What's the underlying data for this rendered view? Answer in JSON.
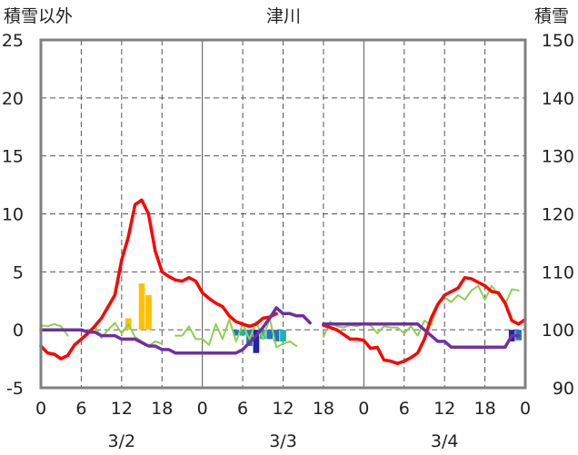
{
  "chart_data": {
    "type": "line",
    "title": "津川",
    "ylabel_left": "積雪以外",
    "ylabel_right": "積雪",
    "ylim_left": [
      -5,
      25
    ],
    "ylim_right": [
      90,
      150
    ],
    "yticks_left": [
      "25",
      "20",
      "15",
      "10",
      "5",
      "0",
      "-5"
    ],
    "yticks_right": [
      "150",
      "140",
      "130",
      "120",
      "110",
      "100",
      "90"
    ],
    "xlim": [
      0,
      72
    ],
    "xticks": [
      "0",
      "6",
      "12",
      "18",
      "0",
      "6",
      "12",
      "18",
      "0",
      "6",
      "12",
      "18",
      "0"
    ],
    "day_labels": [
      "3/2",
      "3/3",
      "3/4"
    ],
    "grid": true,
    "series": [
      {
        "color": "#ff0000",
        "axis": "left",
        "segments": [
          [
            [
              0,
              -1.4
            ],
            [
              1,
              -2.0
            ],
            [
              2,
              -2.1
            ],
            [
              3,
              -2.5
            ],
            [
              4,
              -2.2
            ],
            [
              5,
              -1.3
            ],
            [
              6,
              -0.8
            ],
            [
              7,
              -0.3
            ],
            [
              8,
              0.3
            ],
            [
              9,
              1.0
            ],
            [
              10,
              2.0
            ],
            [
              11,
              3.0
            ],
            [
              12,
              6.0
            ],
            [
              13,
              8.0
            ],
            [
              14,
              10.8
            ],
            [
              15,
              11.2
            ],
            [
              16,
              10.0
            ],
            [
              17,
              6.8
            ],
            [
              18,
              5.0
            ],
            [
              19,
              4.6
            ],
            [
              20,
              4.3
            ],
            [
              21,
              4.2
            ],
            [
              22,
              4.5
            ],
            [
              23,
              4.2
            ],
            [
              24,
              3.2
            ],
            [
              25,
              2.7
            ],
            [
              26,
              2.3
            ],
            [
              27,
              2.0
            ],
            [
              28,
              1.2
            ],
            [
              29,
              0.7
            ],
            [
              30,
              0.5
            ],
            [
              31,
              0.3
            ],
            [
              32,
              0.5
            ],
            [
              33,
              1.0
            ],
            [
              34,
              1.1
            ],
            [
              35,
              1.4
            ]
          ],
          [
            [
              42,
              0.4
            ],
            [
              43,
              0.2
            ],
            [
              44,
              0.0
            ],
            [
              45,
              -0.4
            ],
            [
              46,
              -0.8
            ],
            [
              47,
              -0.8
            ],
            [
              48,
              -0.9
            ],
            [
              49,
              -1.6
            ],
            [
              50,
              -1.5
            ],
            [
              51,
              -2.6
            ],
            [
              52,
              -2.7
            ],
            [
              53,
              -2.9
            ],
            [
              54,
              -2.7
            ],
            [
              55,
              -2.4
            ],
            [
              56,
              -2.0
            ],
            [
              57,
              -0.8
            ],
            [
              58,
              1.0
            ],
            [
              59,
              2.2
            ],
            [
              60,
              3.0
            ],
            [
              61,
              3.3
            ],
            [
              62,
              3.6
            ],
            [
              63,
              4.5
            ],
            [
              64,
              4.4
            ],
            [
              65,
              4.1
            ],
            [
              66,
              3.8
            ],
            [
              67,
              3.3
            ],
            [
              68,
              3.2
            ],
            [
              69,
              2.3
            ],
            [
              70,
              0.8
            ],
            [
              71,
              0.5
            ],
            [
              72,
              0.9
            ]
          ]
        ]
      },
      {
        "color": "#8cd150",
        "axis": "left",
        "segments": [
          [
            [
              0,
              0.4
            ],
            [
              1,
              0.3
            ],
            [
              2,
              0.5
            ],
            [
              3,
              0.3
            ],
            [
              4,
              -0.5
            ]
          ],
          [
            [
              8,
              0.3
            ],
            [
              9,
              -0.7
            ],
            [
              10,
              0.0
            ],
            [
              11,
              0.6
            ],
            [
              12,
              -0.3
            ],
            [
              13,
              0.5
            ],
            [
              14,
              -0.6
            ],
            [
              15,
              -1.0
            ],
            [
              16,
              -1.4
            ],
            [
              17,
              -1.0
            ],
            [
              18,
              -1.2
            ]
          ],
          [
            [
              20,
              -0.5
            ],
            [
              21,
              -0.5
            ],
            [
              22,
              0.3
            ],
            [
              23,
              -0.8
            ],
            [
              24,
              -0.8
            ],
            [
              25,
              -1.3
            ],
            [
              26,
              0.5
            ],
            [
              27,
              -0.8
            ],
            [
              28,
              0.9
            ],
            [
              29,
              -1.0
            ],
            [
              30,
              0.5
            ],
            [
              31,
              -0.8
            ],
            [
              32,
              0.7
            ],
            [
              33,
              -0.8
            ],
            [
              34,
              1.0
            ],
            [
              35,
              -1.5
            ],
            [
              36,
              -1.2
            ],
            [
              37,
              -1.0
            ],
            [
              38,
              -1.4
            ]
          ],
          [
            [
              42,
              -0.6
            ],
            [
              43,
              0.7
            ],
            [
              44,
              0.3
            ],
            [
              45,
              0.2
            ],
            [
              46,
              0.4
            ],
            [
              47,
              0.3
            ],
            [
              48,
              0.5
            ],
            [
              49,
              0.4
            ],
            [
              50,
              -0.3
            ],
            [
              51,
              0.3
            ],
            [
              52,
              0.2
            ],
            [
              53,
              0.2
            ],
            [
              54,
              -0.3
            ],
            [
              55,
              0.3
            ],
            [
              56,
              -0.5
            ],
            [
              57,
              0.8
            ],
            [
              58,
              0.4
            ],
            [
              59,
              2.2
            ],
            [
              60,
              2.8
            ],
            [
              61,
              2.4
            ],
            [
              62,
              3.0
            ],
            [
              63,
              2.6
            ],
            [
              64,
              3.4
            ],
            [
              65,
              3.8
            ],
            [
              66,
              2.6
            ],
            [
              67,
              3.8
            ],
            [
              68,
              3.0
            ],
            [
              69,
              2.2
            ],
            [
              70,
              3.5
            ],
            [
              71,
              3.4
            ]
          ]
        ]
      },
      {
        "color": "#7030a0",
        "axis": "right",
        "segments": [
          [
            [
              0,
              100
            ],
            [
              1,
              100
            ],
            [
              2,
              100
            ],
            [
              3,
              100
            ],
            [
              4,
              100
            ],
            [
              5,
              100
            ],
            [
              6,
              100
            ],
            [
              7,
              99.6
            ],
            [
              8,
              99.6
            ],
            [
              9,
              99.0
            ],
            [
              10,
              99.0
            ],
            [
              11,
              99.0
            ],
            [
              12,
              98.4
            ],
            [
              13,
              98.4
            ],
            [
              14,
              98.4
            ],
            [
              15,
              97.8
            ],
            [
              16,
              97.2
            ],
            [
              17,
              97.2
            ],
            [
              18,
              96.6
            ],
            [
              19,
              96.6
            ],
            [
              20,
              96.0
            ],
            [
              21,
              96.0
            ],
            [
              22,
              96.0
            ],
            [
              23,
              96.0
            ],
            [
              24,
              96.0
            ],
            [
              25,
              96.0
            ],
            [
              26,
              96.0
            ],
            [
              27,
              96.0
            ],
            [
              28,
              96.0
            ],
            [
              29,
              96.0
            ],
            [
              30,
              96.6
            ],
            [
              31,
              97.8
            ],
            [
              32,
              99.0
            ],
            [
              33,
              100.4
            ],
            [
              34,
              102.0
            ],
            [
              35,
              103.8
            ],
            [
              36,
              102.8
            ],
            [
              37,
              102.8
            ],
            [
              38,
              102.4
            ],
            [
              39,
              102.4
            ],
            [
              40,
              101.2
            ]
          ],
          [
            [
              42,
              101.0
            ],
            [
              43,
              101.0
            ],
            [
              44,
              101.0
            ],
            [
              45,
              101.0
            ],
            [
              46,
              101.0
            ],
            [
              47,
              101.0
            ],
            [
              48,
              101.0
            ],
            [
              49,
              101.0
            ],
            [
              50,
              101.0
            ],
            [
              51,
              101.0
            ],
            [
              52,
              101.0
            ],
            [
              53,
              101.0
            ],
            [
              54,
              101.0
            ],
            [
              55,
              101.0
            ],
            [
              56,
              101.0
            ],
            [
              57,
              100.0
            ],
            [
              58,
              99.0
            ],
            [
              59,
              98.0
            ],
            [
              60,
              98.0
            ],
            [
              61,
              97.0
            ],
            [
              62,
              97.0
            ],
            [
              63,
              97.0
            ],
            [
              64,
              97.0
            ],
            [
              65,
              97.0
            ],
            [
              66,
              97.0
            ],
            [
              67,
              97.0
            ],
            [
              68,
              97.0
            ],
            [
              69,
              97.0
            ],
            [
              70,
              99.0
            ],
            [
              71,
              99.0
            ]
          ]
        ]
      }
    ],
    "bars": [
      {
        "color": "#ffc000",
        "axis": "left",
        "values": [
          [
            13,
            1.0
          ],
          [
            15,
            4.0
          ],
          [
            16,
            3.0
          ]
        ]
      },
      {
        "color": "#1f77c4",
        "axis": "left",
        "values": [
          [
            29,
            -0.5
          ],
          [
            31,
            -1.4
          ],
          [
            34,
            -0.8
          ],
          [
            35,
            -1.0
          ],
          [
            71,
            -0.9
          ]
        ]
      },
      {
        "color": "#2222aa",
        "axis": "left",
        "values": [
          [
            32,
            -2.0
          ],
          [
            70,
            -1.0
          ]
        ]
      },
      {
        "color": "#20b2aa",
        "axis": "left",
        "values": [
          [
            30,
            -0.5
          ],
          [
            33,
            -0.8
          ],
          [
            36,
            -1.0
          ]
        ]
      }
    ]
  }
}
